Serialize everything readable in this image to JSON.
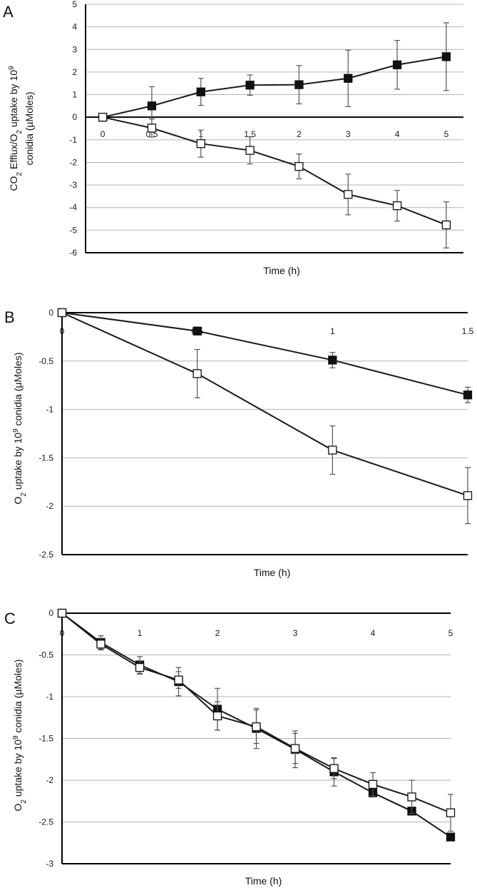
{
  "chart_data": [
    {
      "panel": "A",
      "type": "line",
      "xlabel": "Time (h)",
      "ylabel_lines": [
        "CO2 Efflux/O2 uptake by 109",
        "conidia (µMoles)"
      ],
      "ylim": [
        -6,
        5
      ],
      "yticks": [
        "5",
        "4",
        "3",
        "2",
        "1",
        "0",
        "-1",
        "-2",
        "-3",
        "-4",
        "-5",
        "-6"
      ],
      "categories": [
        "0",
        "0.5",
        "1",
        "1.5",
        "2",
        "3",
        "4",
        "5"
      ],
      "grid": true,
      "series": [
        {
          "marker": "filled-square",
          "values": [
            0,
            0.5,
            1.12,
            1.42,
            1.44,
            1.72,
            2.32,
            2.68
          ],
          "errors": [
            0,
            0.85,
            0.6,
            0.45,
            0.85,
            1.25,
            1.08,
            1.5
          ]
        },
        {
          "marker": "open-square",
          "values": [
            0,
            -0.48,
            -1.17,
            -1.47,
            -2.18,
            -3.42,
            -3.92,
            -4.77
          ],
          "errors": [
            0,
            0.4,
            0.6,
            0.6,
            0.55,
            0.9,
            0.68,
            1.02
          ]
        }
      ]
    },
    {
      "panel": "B",
      "type": "line",
      "xlabel": "Time (h)",
      "ylabel": "O2 uptake by 109 conidia (µMoles)",
      "ylim": [
        -2.5,
        0
      ],
      "yticks": [
        "0",
        "-0.5",
        "-1",
        "-1.5",
        "-2",
        "-2.5"
      ],
      "xlim": [
        0,
        1.5
      ],
      "x": [
        0,
        0.5,
        1,
        1.5
      ],
      "xtick_labels": [
        "0",
        "0.5",
        "1",
        "1.5"
      ],
      "grid": true,
      "series": [
        {
          "marker": "filled-square",
          "values": [
            0,
            -0.19,
            -0.49,
            -0.85
          ],
          "errors": [
            0,
            0.03,
            0.08,
            0.08
          ]
        },
        {
          "marker": "open-square",
          "values": [
            0,
            -0.63,
            -1.42,
            -1.89
          ],
          "errors": [
            0,
            0.25,
            0.25,
            0.29
          ]
        }
      ]
    },
    {
      "panel": "C",
      "type": "line",
      "xlabel": "Time (h)",
      "ylabel": "O2 uptake by 109 conidia (µMoles)",
      "ylim": [
        -3,
        0
      ],
      "yticks": [
        "0",
        "-0.5",
        "-1",
        "-1.5",
        "-2",
        "-2.5",
        "-3"
      ],
      "xlim": [
        0,
        5
      ],
      "x": [
        0,
        0.5,
        1,
        1.5,
        2,
        2.5,
        3,
        3.5,
        4,
        4.5,
        5
      ],
      "xtick_labels": [
        "0",
        "1",
        "2",
        "3",
        "4",
        "5"
      ],
      "grid": true,
      "series": [
        {
          "marker": "filled-square",
          "values": [
            0,
            -0.35,
            -0.62,
            -0.82,
            -1.15,
            -1.38,
            -1.63,
            -1.9,
            -2.15,
            -2.37,
            -2.68
          ],
          "errors": [
            0,
            0.08,
            0.1,
            0.17,
            0.25,
            0.24,
            0.22,
            0.17,
            0.05,
            0.04,
            0.03
          ]
        },
        {
          "marker": "open-square",
          "values": [
            0,
            -0.37,
            -0.65,
            -0.8,
            -1.23,
            -1.36,
            -1.62,
            -1.86,
            -2.05,
            -2.2,
            -2.39
          ],
          "errors": [
            0,
            0.07,
            0.08,
            0.1,
            0.17,
            0.2,
            0.18,
            0.12,
            0.14,
            0.2,
            0.22
          ]
        }
      ]
    }
  ]
}
